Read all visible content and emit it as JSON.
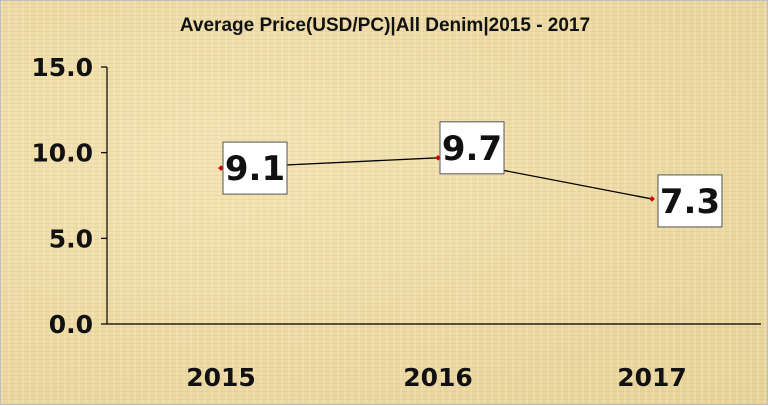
{
  "chart_data": {
    "type": "line",
    "title": "Average Price(USD/PC)|All Denim|2015 - 2017",
    "xlabel": "",
    "ylabel": "",
    "categories": [
      "2015",
      "2016",
      "2017"
    ],
    "values": [
      9.1,
      9.7,
      7.3
    ],
    "data_labels": [
      "9.1",
      "9.7",
      "7.3"
    ],
    "yticks": [
      "0.0",
      "5.0",
      "10.0",
      "15.0"
    ],
    "ytick_values": [
      0,
      5,
      10,
      15
    ],
    "ylim": [
      0,
      15
    ],
    "grid": false,
    "legend": "none",
    "line_color": "#000000",
    "marker_color": "#cc0000"
  }
}
